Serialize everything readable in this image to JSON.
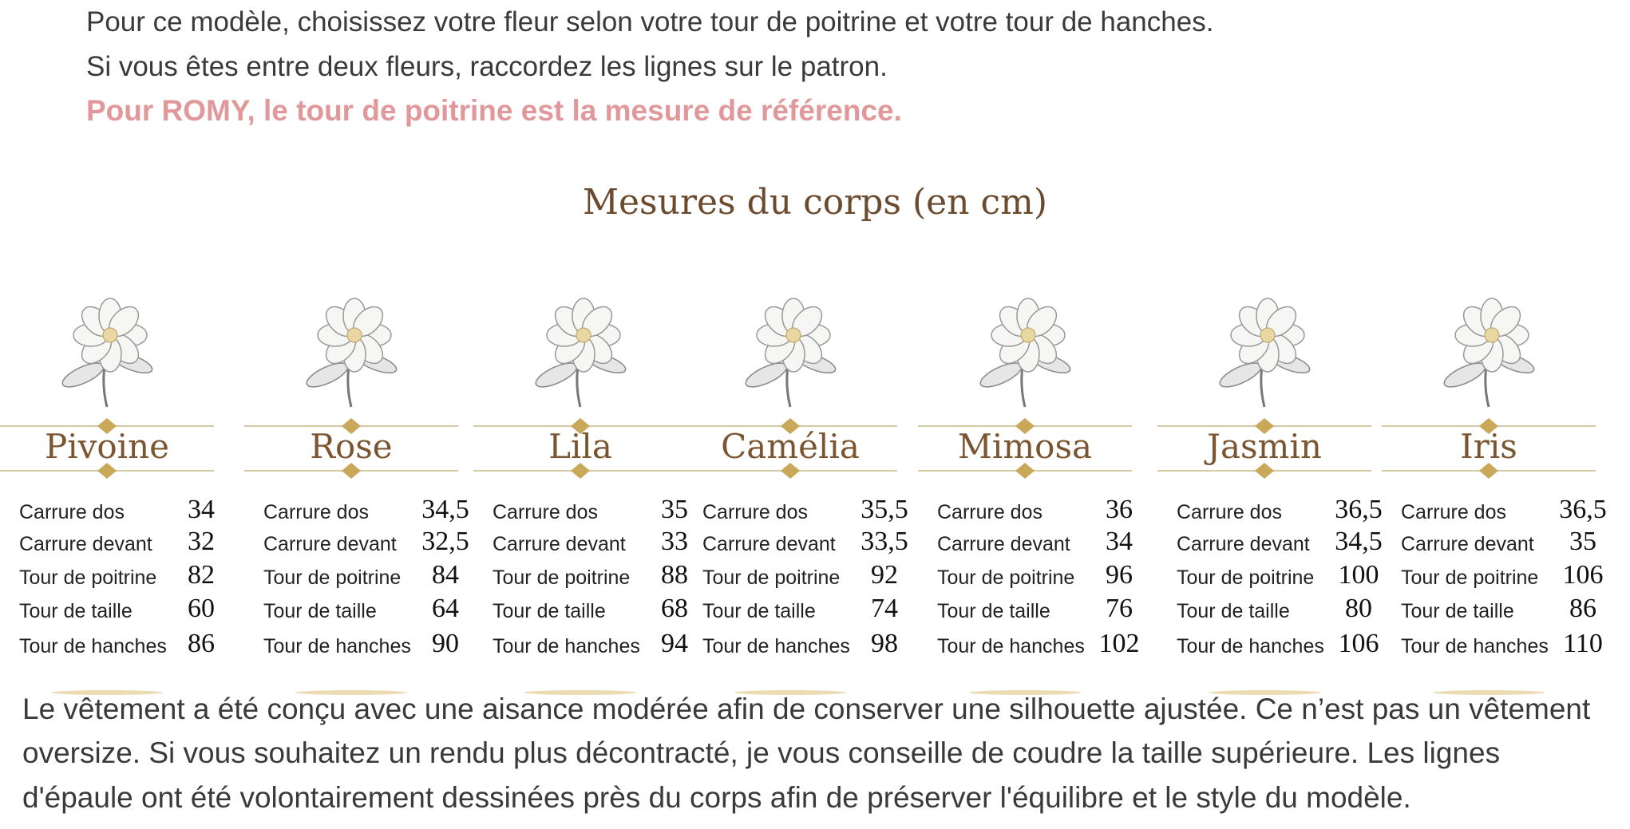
{
  "intro": {
    "lines": [
      "Pour ce modèle, choisissez votre fleur selon votre tour de poitrine et votre tour de hanches.",
      "Si vous êtes entre deux fleurs, raccordez les lignes sur le patron."
    ],
    "emphasis": "Pour ROMY, le tour de poitrine est la mesure de référence."
  },
  "table": {
    "title": "Mesures du corps (en cm)",
    "flowers": [
      {
        "name": "Pivoine",
        "rows": [
          [
            "Carrure dos",
            "34"
          ],
          [
            "Carrure devant",
            "32"
          ],
          [
            "Tour de poitrine",
            "82"
          ],
          [
            "Tour de taille",
            "60"
          ],
          [
            "Tour de hanches",
            "86"
          ]
        ]
      },
      {
        "name": "Rose",
        "rows": [
          [
            "Carrure dos",
            "34,5"
          ],
          [
            "Carrure devant",
            "32,5"
          ],
          [
            "Tour de poitrine",
            "84"
          ],
          [
            "Tour de taille",
            "64"
          ],
          [
            "Tour de hanches",
            "90"
          ]
        ]
      },
      {
        "name": "Lila",
        "rows": [
          [
            "Carrure dos",
            "35"
          ],
          [
            "Carrure devant",
            "33"
          ],
          [
            "Tour de poitrine",
            "88"
          ],
          [
            "Tour de taille",
            "68"
          ],
          [
            "Tour de hanches",
            "94"
          ]
        ]
      },
      {
        "name": "Camélia",
        "rows": [
          [
            "Carrure dos",
            "35,5"
          ],
          [
            "Carrure devant",
            "33,5"
          ],
          [
            "Tour de poitrine",
            "92"
          ],
          [
            "Tour de taille",
            "74"
          ],
          [
            "Tour de hanches",
            "98"
          ]
        ]
      },
      {
        "name": "Mimosa",
        "rows": [
          [
            "Carrure dos",
            "36"
          ],
          [
            "Carrure devant",
            "34"
          ],
          [
            "Tour de poitrine",
            "96"
          ],
          [
            "Tour de taille",
            "76"
          ],
          [
            "Tour de hanches",
            "102"
          ]
        ]
      },
      {
        "name": "Jasmin",
        "rows": [
          [
            "Carrure dos",
            "36,5"
          ],
          [
            "Carrure devant",
            "34,5"
          ],
          [
            "Tour de poitrine",
            "100"
          ],
          [
            "Tour de taille",
            "80"
          ],
          [
            "Tour de hanches",
            "106"
          ]
        ]
      },
      {
        "name": "Iris",
        "rows": [
          [
            "Carrure dos",
            "36,5"
          ],
          [
            "Carrure devant",
            "35"
          ],
          [
            "Tour de poitrine",
            "106"
          ],
          [
            "Tour de taille",
            "86"
          ],
          [
            "Tour de hanches",
            "110"
          ]
        ]
      }
    ]
  },
  "footer": {
    "lines": [
      "Le vêtement a été conçu avec une aisance modérée afin de conserver une silhouette ajustée. Ce n’est pas un vêtement",
      "oversize. Si vous souhaitez un rendu plus décontracté, je vous conseille de coudre la taille supérieure. Les lignes",
      "d'épaule ont été volontairement dessinées près du corps afin de préserver l'équilibre et le style du modèle."
    ]
  }
}
